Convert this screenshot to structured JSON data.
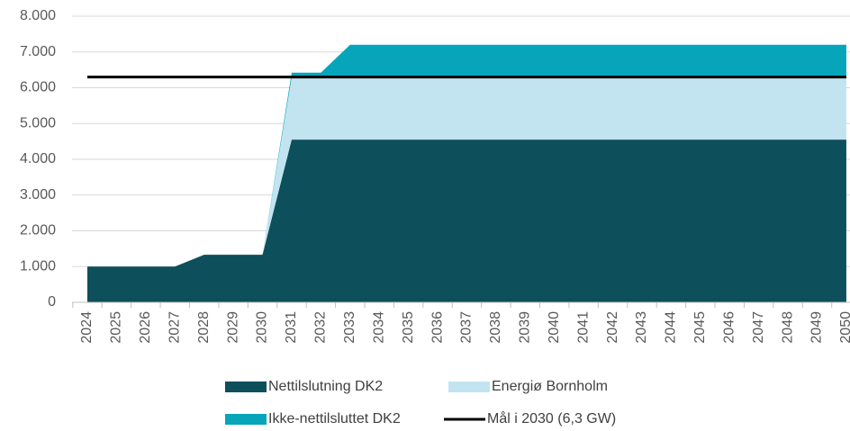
{
  "chart_data": {
    "type": "stacked_area",
    "categories": [
      "2024",
      "2025",
      "2026",
      "2027",
      "2028",
      "2029",
      "2030",
      "2031",
      "2032",
      "2033",
      "2034",
      "2035",
      "2036",
      "2037",
      "2038",
      "2039",
      "2040",
      "2041",
      "2042",
      "2043",
      "2044",
      "2045",
      "2046",
      "2047",
      "2048",
      "2049",
      "2050"
    ],
    "series": [
      {
        "name": "Nettilslutning DK2",
        "color": "#0d4f5b",
        "values": [
          1000,
          1000,
          1000,
          1000,
          1330,
          1330,
          1330,
          4550,
          4550,
          4550,
          4550,
          4550,
          4550,
          4550,
          4550,
          4550,
          4550,
          4550,
          4550,
          4550,
          4550,
          4550,
          4550,
          4550,
          4550,
          4550,
          4550
        ]
      },
      {
        "name": "Energiø Bornholm",
        "color": "#c2e4f0",
        "values": [
          0,
          0,
          0,
          0,
          0,
          0,
          0,
          1750,
          1750,
          1750,
          1750,
          1750,
          1750,
          1750,
          1750,
          1750,
          1750,
          1750,
          1750,
          1750,
          1750,
          1750,
          1750,
          1750,
          1750,
          1750,
          1750
        ]
      },
      {
        "name": "Ikke-nettilsluttet DK2",
        "color": "#06a5ba",
        "values": [
          0,
          0,
          0,
          0,
          0,
          0,
          0,
          120,
          120,
          900,
          900,
          900,
          900,
          900,
          900,
          900,
          900,
          900,
          900,
          900,
          900,
          900,
          900,
          900,
          900,
          900,
          900
        ]
      },
      {
        "name": "Mål i 2030 (6,3 GW)",
        "color": "#000000",
        "type": "line",
        "values": [
          6300,
          6300,
          6300,
          6300,
          6300,
          6300,
          6300,
          6300,
          6300,
          6300,
          6300,
          6300,
          6300,
          6300,
          6300,
          6300,
          6300,
          6300,
          6300,
          6300,
          6300,
          6300,
          6300,
          6300,
          6300,
          6300,
          6300
        ]
      }
    ],
    "ylim": [
      0,
      8000
    ],
    "yticks": [
      0,
      {
        "value": 1000,
        "label": "1.000"
      },
      {
        "value": 2000,
        "label": "2.000"
      },
      {
        "value": 3000,
        "label": "3.000"
      },
      {
        "value": 4000,
        "label": "4.000"
      },
      {
        "value": 5000,
        "label": "5.000"
      },
      {
        "value": 6000,
        "label": "6.000"
      },
      {
        "value": 7000,
        "label": "7.000"
      },
      {
        "value": 8000,
        "label": "8.000"
      }
    ],
    "grid": true,
    "legend": "bottom"
  }
}
